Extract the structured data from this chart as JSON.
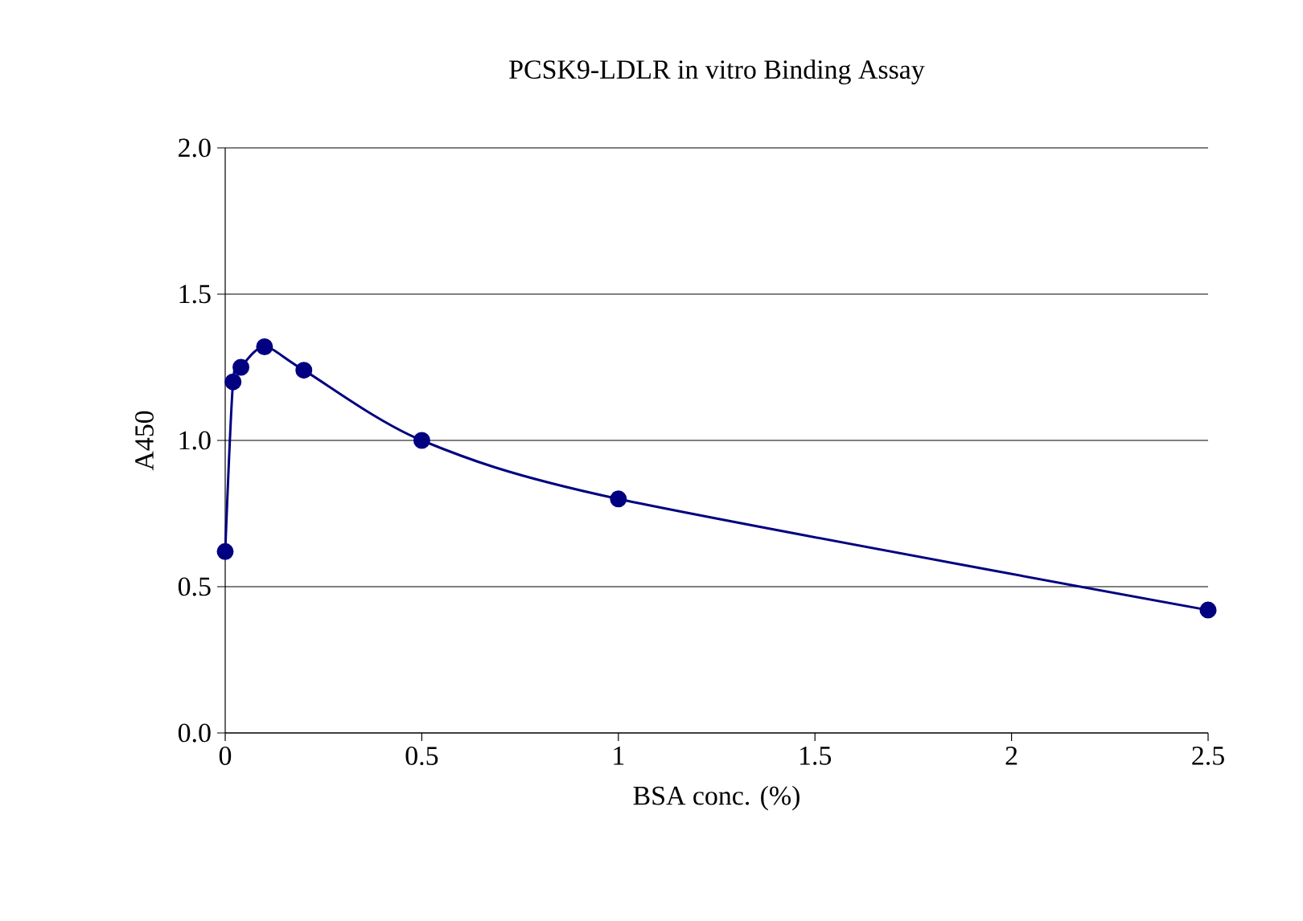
{
  "chart_data": {
    "type": "line",
    "title": "PCSK9-LDLR in vitro Binding Assay",
    "xlabel": "BSA conc. (%)",
    "ylabel": "A450",
    "x": [
      0,
      0.02,
      0.04,
      0.1,
      0.2,
      0.5,
      1,
      2.5
    ],
    "series": [
      {
        "color": "#000080",
        "values": [
          0.62,
          1.2,
          1.25,
          1.32,
          1.24,
          1.0,
          0.8,
          0.42
        ]
      }
    ],
    "xlim": [
      0,
      2.5
    ],
    "ylim": [
      0,
      2
    ],
    "xticks": [
      0,
      0.5,
      1,
      1.5,
      2,
      2.5
    ],
    "yticks": [
      {
        "value": 0,
        "label": "0.0"
      },
      {
        "value": 0.5,
        "label": "0.5"
      },
      {
        "value": 1,
        "label": "1.0"
      },
      {
        "value": 1.5,
        "label": "1.5"
      },
      {
        "value": 2,
        "label": "2.0"
      }
    ],
    "grid": "y",
    "marker": "circle",
    "line_style": "solid"
  }
}
